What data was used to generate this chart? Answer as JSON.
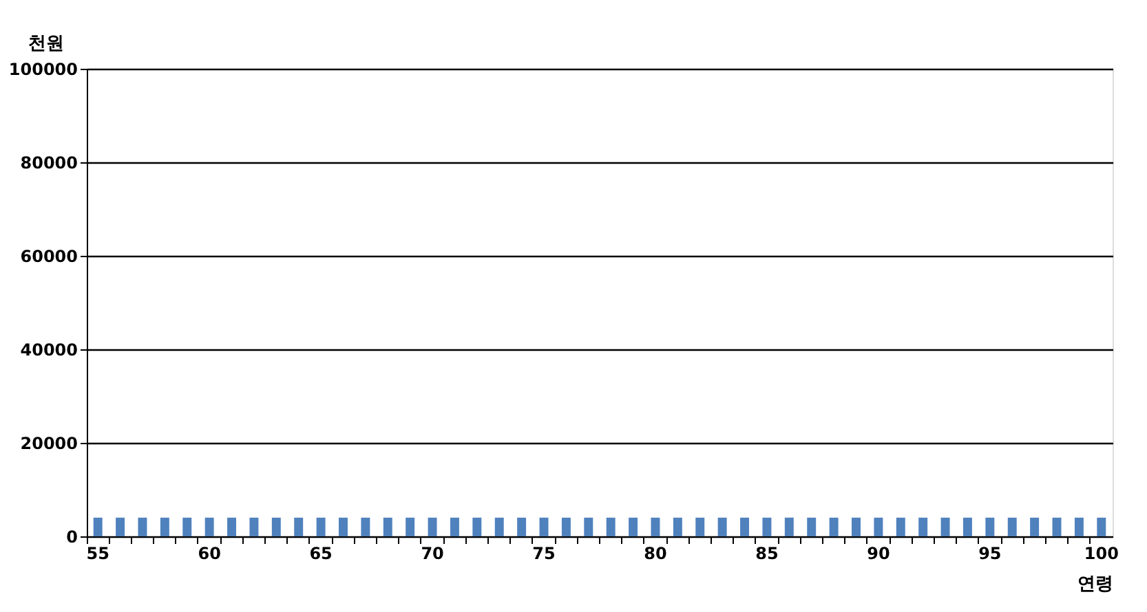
{
  "chart_data": {
    "type": "bar",
    "ylabel": "천원",
    "xlabel": "연령",
    "categories": [
      "55",
      null,
      null,
      null,
      null,
      "60",
      null,
      null,
      null,
      null,
      "65",
      null,
      null,
      null,
      null,
      "70",
      null,
      null,
      null,
      null,
      "75",
      null,
      null,
      null,
      null,
      "80",
      null,
      null,
      null,
      null,
      "85",
      null,
      null,
      null,
      null,
      "90",
      null,
      null,
      null,
      null,
      "95",
      null,
      null,
      null,
      null,
      "100"
    ],
    "values": [
      4000,
      4000,
      4000,
      4000,
      4000,
      4000,
      4000,
      4000,
      4000,
      4000,
      4000,
      4000,
      4000,
      4000,
      4000,
      4000,
      4000,
      4000,
      4000,
      4000,
      4000,
      4000,
      4000,
      4000,
      4000,
      4000,
      4000,
      4000,
      4000,
      4000,
      4000,
      4000,
      4000,
      4000,
      4000,
      4000,
      4000,
      4000,
      4000,
      4000,
      4000,
      4000,
      4000,
      4000,
      4000,
      4000
    ],
    "color": "#4f81bd",
    "ylim": [
      0,
      100000
    ],
    "yticks": [
      0,
      20000,
      40000,
      60000,
      80000,
      100000
    ],
    "grid": "y"
  }
}
